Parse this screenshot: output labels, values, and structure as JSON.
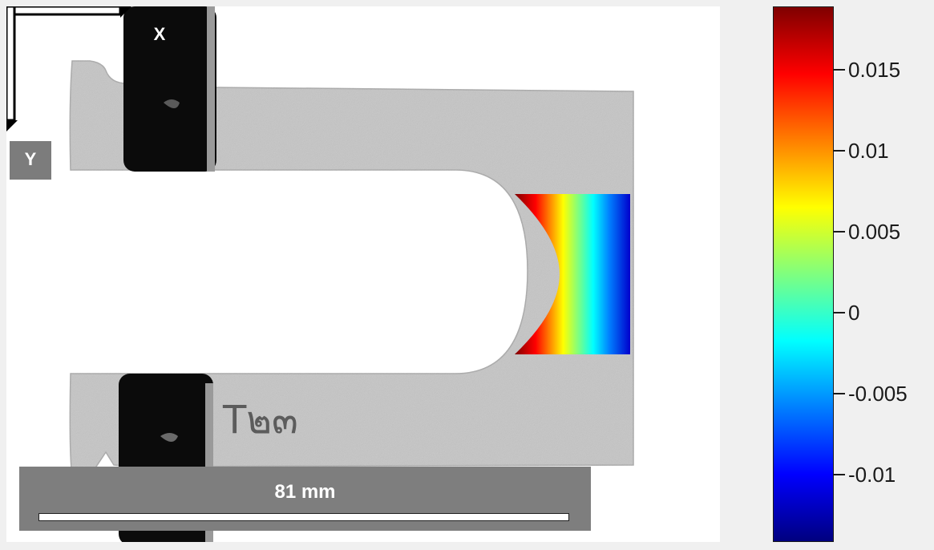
{
  "axes": {
    "x_label": "X",
    "y_label": "Y"
  },
  "scale_bar": {
    "label": "81 mm"
  },
  "specimen_marking": "T๒๓",
  "colorbar": {
    "colormap": "jet",
    "ticks": [
      "0.015",
      "0.01",
      "0.005",
      "0",
      "-0.005",
      "-0.01"
    ],
    "colors": {
      "low": "#00007f",
      "mid": "#7fff7f",
      "high": "#7f0000"
    }
  },
  "colors": {
    "specimen": "#c6c6c6",
    "clamp": "#0b0b0b",
    "overlay_box": "#7e7e7e"
  }
}
